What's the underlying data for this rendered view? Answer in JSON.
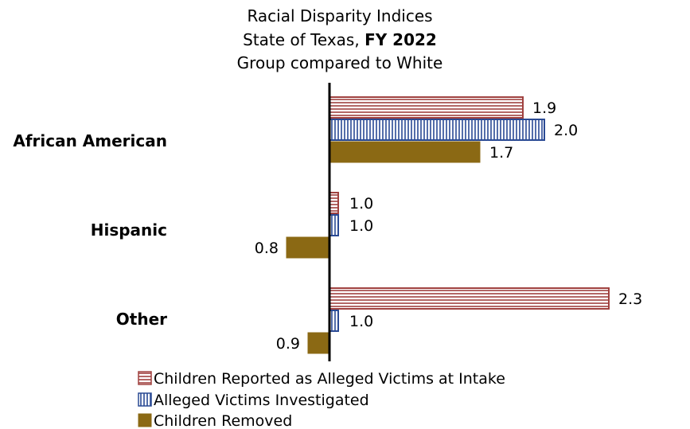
{
  "chart_data": {
    "type": "bar",
    "orientation": "horizontal",
    "title": {
      "line1": "Racial Disparity Indices",
      "line2_prefix": "State of Texas, ",
      "line2_bold": "FY 2022",
      "line3": "Group compared to White"
    },
    "categories": [
      "African American",
      "Hispanic",
      "Other"
    ],
    "series": [
      {
        "name": "Children Reported as Alleged Victims at Intake",
        "values": [
          1.9,
          1.0,
          2.3
        ],
        "labels": [
          "1.9",
          "1.0",
          "2.3"
        ],
        "color": "#a0413f",
        "pattern": "horizontal-stripes"
      },
      {
        "name": "Alleged Victims Investigated",
        "values": [
          2.0,
          1.0,
          1.0
        ],
        "labels": [
          "2.0",
          "1.0",
          "1.0"
        ],
        "color": "#2a4a94",
        "pattern": "vertical-stripes"
      },
      {
        "name": "Children Removed",
        "values": [
          1.7,
          0.8,
          0.9
        ],
        "labels": [
          "1.7",
          "0.8",
          "0.9"
        ],
        "color": "#8b6914",
        "pattern": "solid"
      }
    ],
    "baseline": 1.0,
    "xlim": [
      0.5,
      2.3
    ],
    "grid": false,
    "legend_position": "bottom"
  }
}
